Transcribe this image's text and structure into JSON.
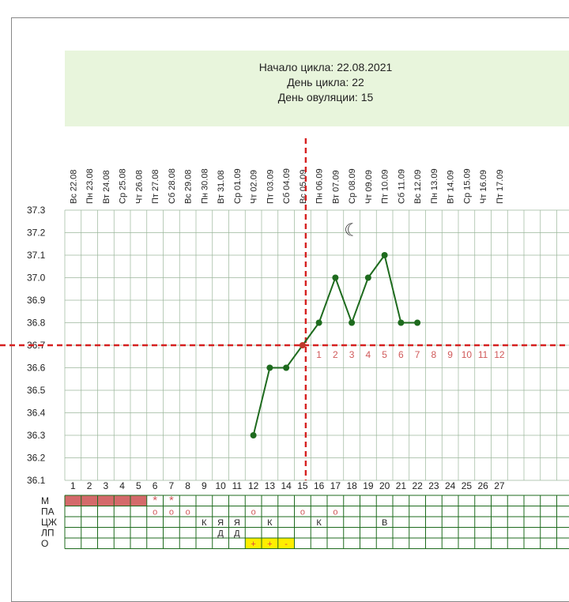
{
  "header": {
    "cycle_start_label": "Начало цикла: 22.08.2021",
    "cycle_day_label": "День цикла: 22",
    "ovulation_day_label": "День овуляции: 15"
  },
  "colors": {
    "line": "#1e6b1e",
    "ovulation_marker": "#c0392b",
    "coverline": "#d62020",
    "grid": "#9bb69b",
    "menses": "#d46a6a",
    "header_bg": "#e8f5dc",
    "highlight": "#ffee00"
  },
  "moon_symbol": "☾",
  "chart_data": {
    "type": "line",
    "dates": [
      "Вс 22.08",
      "Пн 23.08",
      "Вт 24.08",
      "Ср 25.08",
      "Чт 26.08",
      "Пт 27.08",
      "Сб 28.08",
      "Вс 29.08",
      "Пн 30.08",
      "Вт 31.08",
      "Ср 01.09",
      "Чт 02.09",
      "Пт 03.09",
      "Сб 04.09",
      "Вс 05.09",
      "Пн 06.09",
      "Вт 07.09",
      "Ср 08.09",
      "Чт 09.09",
      "Пт 10.09",
      "Сб 11.09",
      "Вс 12.09",
      "Пн 13.09",
      "Вт 14.09",
      "Ср 15.09",
      "Чт 16.09",
      "Пт 17.09"
    ],
    "days": [
      "1",
      "2",
      "3",
      "4",
      "5",
      "6",
      "7",
      "8",
      "9",
      "10",
      "11",
      "12",
      "13",
      "14",
      "15",
      "16",
      "17",
      "18",
      "19",
      "20",
      "21",
      "22",
      "23",
      "24",
      "25",
      "26",
      "27"
    ],
    "y_ticks": [
      "37.3",
      "37.2",
      "37.1",
      "37.0",
      "36.9",
      "36.8",
      "36.7",
      "36.6",
      "36.5",
      "36.4",
      "36.3",
      "36.2",
      "36.1"
    ],
    "ylim": [
      36.1,
      37.3
    ],
    "series": [
      {
        "points": [
          [
            12,
            36.3
          ],
          [
            13,
            36.6
          ],
          [
            14,
            36.6
          ],
          [
            15,
            36.7
          ],
          [
            16,
            36.8
          ],
          [
            17,
            37.0
          ],
          [
            18,
            36.8
          ],
          [
            19,
            37.0
          ],
          [
            20,
            37.1
          ],
          [
            21,
            36.8
          ],
          [
            22,
            36.8
          ]
        ]
      }
    ],
    "ovulation_day": 15,
    "coverline": 36.7,
    "moon_day": 18,
    "luteal_day_labels": [
      "1",
      "2",
      "3",
      "4",
      "5",
      "6",
      "7",
      "8",
      "9",
      "10",
      "11",
      "12"
    ]
  },
  "table": {
    "row_labels": [
      "М",
      "ПА",
      "ЦЖ",
      "ЛП",
      "О"
    ],
    "menses_days": [
      1,
      2,
      3,
      4,
      5
    ],
    "cells": [
      {
        "row": 0,
        "day": 6,
        "text": "*"
      },
      {
        "row": 0,
        "day": 7,
        "text": "*"
      },
      {
        "row": 1,
        "day": 6,
        "text": "o"
      },
      {
        "row": 1,
        "day": 7,
        "text": "o"
      },
      {
        "row": 1,
        "day": 8,
        "text": "o"
      },
      {
        "row": 1,
        "day": 12,
        "text": "o"
      },
      {
        "row": 1,
        "day": 15,
        "text": "o"
      },
      {
        "row": 1,
        "day": 17,
        "text": "o"
      },
      {
        "row": 2,
        "day": 9,
        "text": "К"
      },
      {
        "row": 2,
        "day": 10,
        "text": "Я"
      },
      {
        "row": 2,
        "day": 11,
        "text": "Я"
      },
      {
        "row": 2,
        "day": 13,
        "text": "К"
      },
      {
        "row": 2,
        "day": 16,
        "text": "К"
      },
      {
        "row": 2,
        "day": 20,
        "text": "В"
      },
      {
        "row": 3,
        "day": 10,
        "text": "Д"
      },
      {
        "row": 3,
        "day": 11,
        "text": "Д"
      },
      {
        "row": 4,
        "day": 12,
        "text": "+"
      },
      {
        "row": 4,
        "day": 13,
        "text": "+"
      },
      {
        "row": 4,
        "day": 14,
        "text": "-"
      }
    ]
  }
}
